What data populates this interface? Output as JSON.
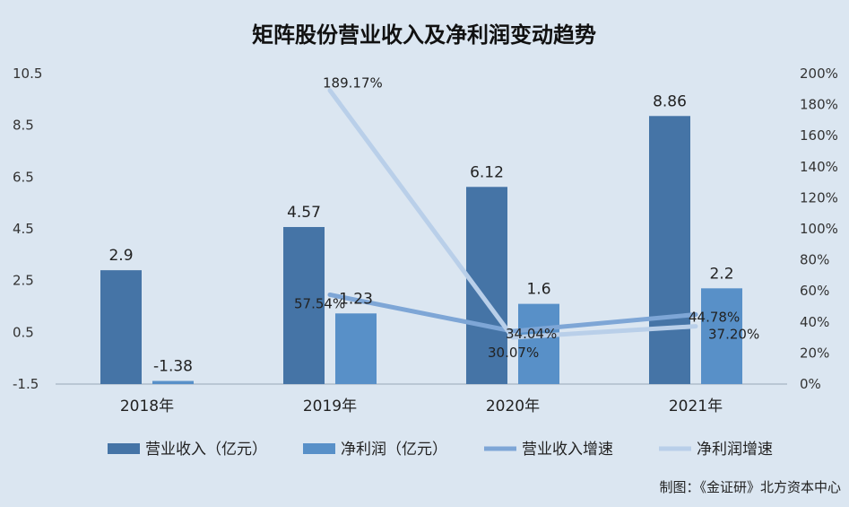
{
  "chart_data": {
    "type": "bar",
    "title": "矩阵股份营业收入及净利润变动趋势",
    "categories": [
      "2018年",
      "2019年",
      "2020年",
      "2021年"
    ],
    "y_left": {
      "min": -1.5,
      "max": 10.5,
      "ticks": [
        "10.5",
        "8.5",
        "6.5",
        "4.5",
        "2.5",
        "0.5",
        "-1.5"
      ]
    },
    "y_right": {
      "min": 0,
      "max": 200,
      "ticks": [
        "200%",
        "180%",
        "160%",
        "140%",
        "120%",
        "100%",
        "80%",
        "60%",
        "40%",
        "20%",
        "0%"
      ]
    },
    "bar_series": [
      {
        "name": "营业收入（亿元）",
        "color": "#4574a6",
        "values": [
          2.9,
          4.57,
          6.12,
          8.86
        ],
        "labels": [
          "2.9",
          "4.57",
          "6.12",
          "8.86"
        ]
      },
      {
        "name": "净利润（亿元）",
        "color": "#5890c8",
        "values": [
          -1.38,
          1.23,
          1.6,
          2.2
        ],
        "labels": [
          "-1.38",
          "1.23",
          "1.6",
          "2.2"
        ]
      }
    ],
    "line_series": [
      {
        "name": "营业收入增速",
        "color": "#7ea6d6",
        "values": [
          null,
          57.54,
          34.04,
          44.78
        ],
        "labels": [
          "",
          "57.54%",
          "34.04%",
          "44.78%"
        ]
      },
      {
        "name": "净利润增速",
        "color": "#b9cfe9",
        "values": [
          null,
          189.17,
          30.07,
          37.2
        ],
        "labels": [
          "",
          "189.17%",
          "30.07%",
          "37.20%"
        ]
      }
    ],
    "grid": false,
    "legend": "bottom"
  },
  "footer": {
    "source": "制图：《金证研》北方资本中心"
  }
}
